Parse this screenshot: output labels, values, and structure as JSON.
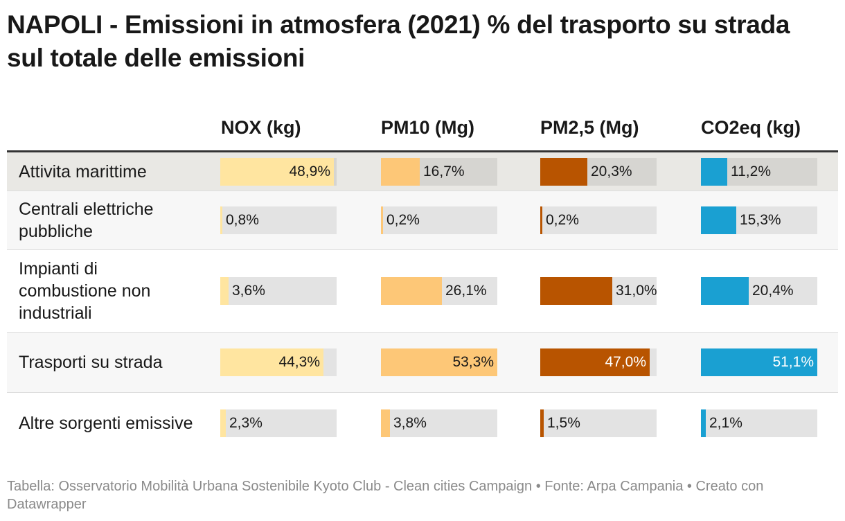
{
  "title": "NAPOLI - Emissioni in atmosfera (2021) % del trasporto su strada sul totale delle emissioni",
  "source": "Tabella: Osservatorio Mobilità Urbana Sostenibile Kyoto Club - Clean cities Campaign • Fonte: Arpa Campania • Creato con Datawrapper",
  "chart_data": {
    "type": "table",
    "columns": [
      "NOX (kg)",
      "PM10 (Mg)",
      "PM2,5 (Mg)",
      "CO2eq (kg)"
    ],
    "column_colors": [
      "#ffe5a0",
      "#fdc777",
      "#b85400",
      "#1aa0d2"
    ],
    "value_max": 50,
    "rows": [
      {
        "label": "Attivita marittime",
        "highlight": true,
        "values": [
          48.9,
          16.7,
          20.3,
          11.2
        ],
        "display": [
          "48,9%",
          "16,7%",
          "20,3%",
          "11,2%"
        ]
      },
      {
        "label": "Centrali elettriche pubbliche",
        "highlight": false,
        "values": [
          0.8,
          0.2,
          0.2,
          15.3
        ],
        "display": [
          "0,8%",
          "0,2%",
          "0,2%",
          "15,3%"
        ]
      },
      {
        "label": "Impianti di combustione non industriali",
        "highlight": false,
        "values": [
          3.6,
          26.1,
          31.0,
          20.4
        ],
        "display": [
          "3,6%",
          "26,1%",
          "31,0%",
          "20,4%"
        ]
      },
      {
        "label": "Trasporti su strada",
        "highlight": false,
        "values": [
          44.3,
          53.3,
          47.0,
          51.1
        ],
        "display": [
          "44,3%",
          "53,3%",
          "47,0%",
          "51,1%"
        ]
      },
      {
        "label": "Altre sorgenti emissive",
        "highlight": false,
        "values": [
          2.3,
          3.8,
          1.5,
          2.1
        ],
        "display": [
          "2,3%",
          "3,8%",
          "1,5%",
          "2,1%"
        ]
      }
    ]
  }
}
